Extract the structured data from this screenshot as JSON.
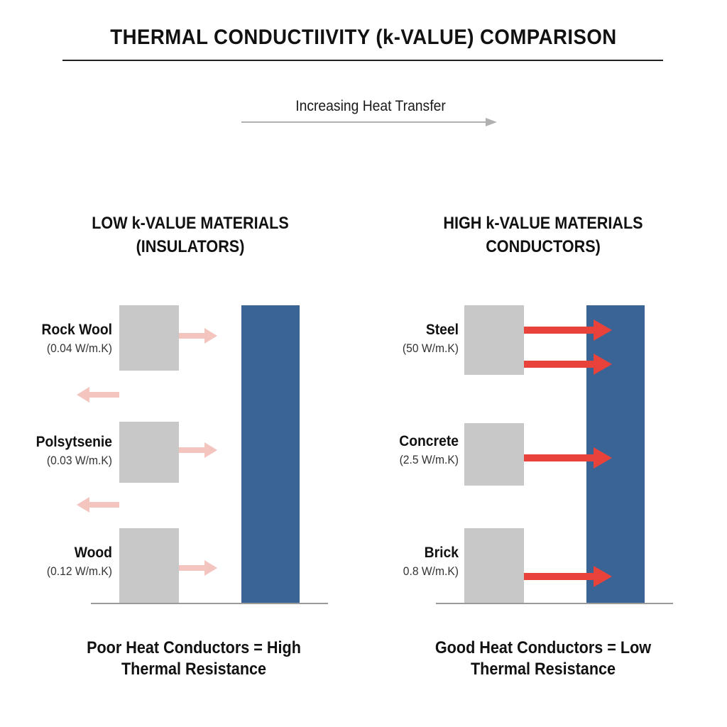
{
  "title": "THERMAL CONDUCTIIVITY (k-VALUE) COMPARISON",
  "axis_label": "Increasing Heat Transfer",
  "left_panel": {
    "title_line1": "LOW k-VALUE MATERIALS",
    "title_line2": "(INSULATORS)",
    "materials": [
      {
        "name": "Rock Wool",
        "k": "(0.04 W/m.K)"
      },
      {
        "name": "Polsytsenie",
        "k": "(0.03 W/m.K)"
      },
      {
        "name": "Wood",
        "k": "(0.12 W/m.K)"
      }
    ],
    "footer_line1": "Poor Heat Conductors = High",
    "footer_line2": "Thermal Resistance"
  },
  "right_panel": {
    "title_line1": "HIGH k-VALUE MATERIALS",
    "title_line2": "CONDUCTORS)",
    "materials": [
      {
        "name": "Steel",
        "k": "(50 W/m.K)"
      },
      {
        "name": "Concrete",
        "k": "(2.5 W/m.K)"
      },
      {
        "name": "Brick",
        "k": "0.8 W/m.K)"
      }
    ],
    "footer_line1": "Good Heat Conductors = Low",
    "footer_line2": "Thermal Resistance"
  },
  "colors": {
    "wall": "#3a6496",
    "block": "#c8c8c8",
    "weak_arrow": "#f4c4bf",
    "strong_arrow": "#e8423a",
    "axis_arrow": "#b0b0b0"
  },
  "icons": [
    "arrow-right-icon",
    "arrow-left-icon"
  ]
}
